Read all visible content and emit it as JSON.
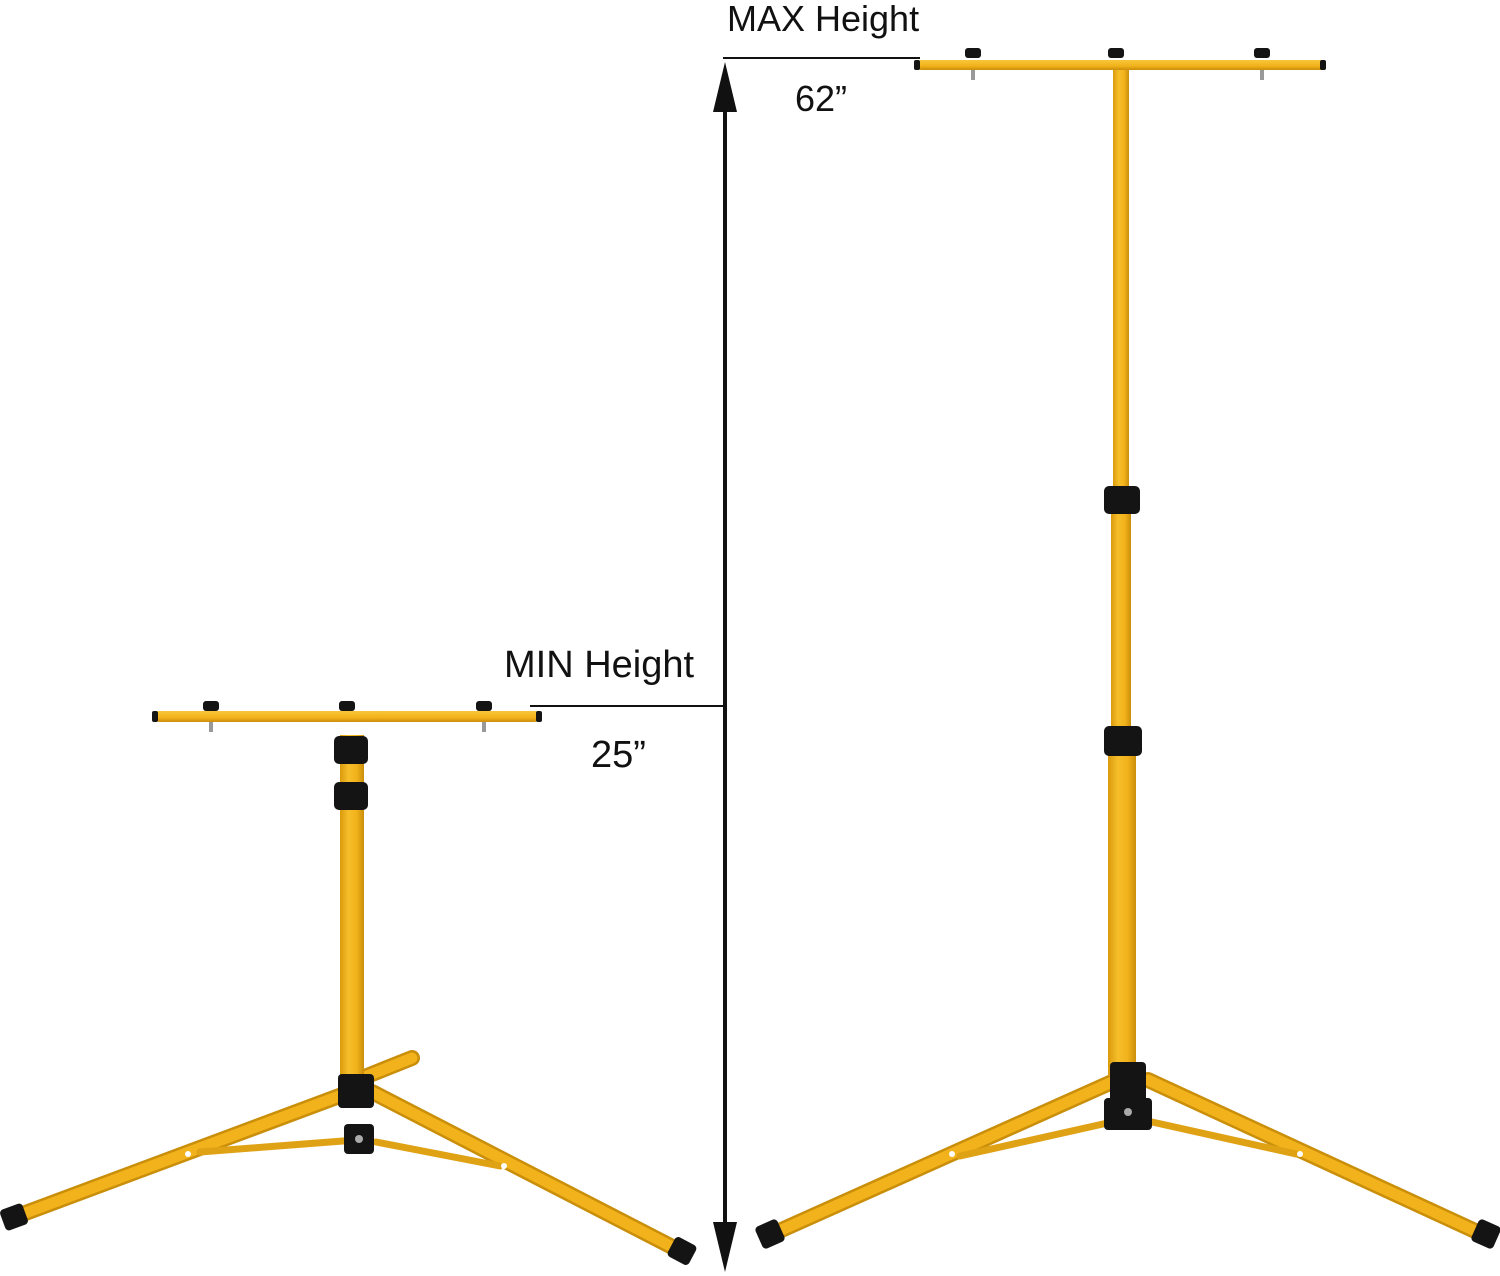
{
  "annotations": {
    "max": {
      "label": "MAX Height",
      "value": "62”"
    },
    "min": {
      "label": "MIN Height",
      "value": "25”"
    }
  },
  "colors": {
    "pole": "#F2B21B",
    "pole_shadow": "#C98E0A",
    "clamp": "#141414",
    "text": "#111111",
    "background": "#FFFFFF"
  }
}
